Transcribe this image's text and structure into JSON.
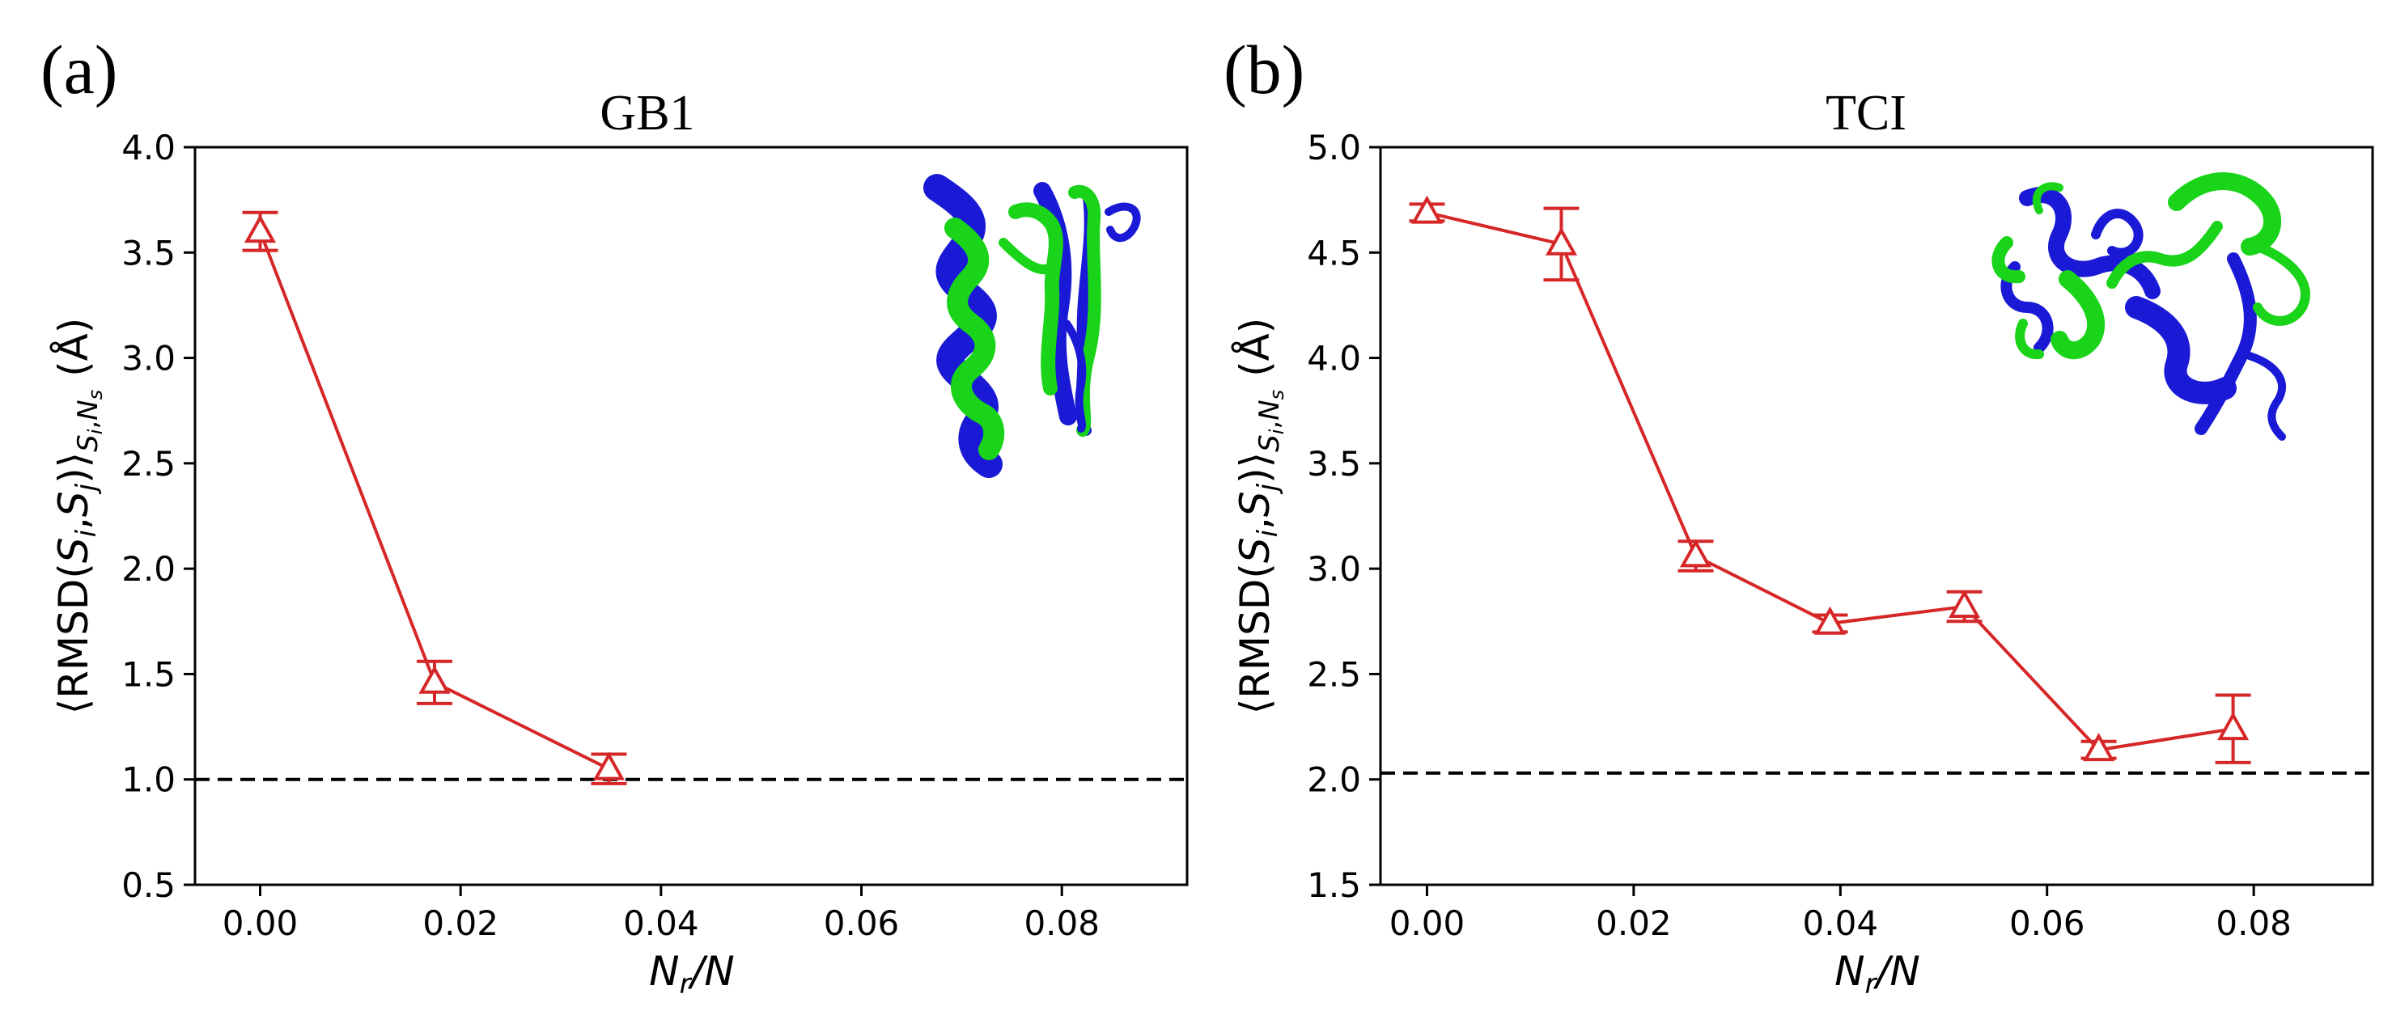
{
  "panels": [
    {
      "panel_label": "(a)",
      "chart_data": {
        "type": "line",
        "title": "GB1",
        "xlabel": "N_r/N",
        "ylabel": "⟨RMSD(S_i,S_j)⟩_{S_i,N_s} (Å)",
        "xlim": [
          -0.0065,
          0.0925
        ],
        "ylim": [
          0.5,
          4.0
        ],
        "xticks": [
          0.0,
          0.02,
          0.04,
          0.06,
          0.08
        ],
        "xtick_labels": [
          "0.00",
          "0.02",
          "0.04",
          "0.06",
          "0.08"
        ],
        "yticks": [
          0.5,
          1.0,
          1.5,
          2.0,
          2.5,
          3.0,
          3.5,
          4.0
        ],
        "ytick_labels": [
          "0.5",
          "1.0",
          "1.5",
          "2.0",
          "2.5",
          "3.0",
          "3.5",
          "4.0"
        ],
        "series": [
          {
            "name": "RMSD",
            "color": "#d62728",
            "marker": "open-triangle",
            "x": [
              0.0,
              0.0174,
              0.0348
            ],
            "y": [
              3.6,
              1.46,
              1.05
            ],
            "yerr": [
              0.09,
              0.1,
              0.07
            ]
          }
        ],
        "reference_line": {
          "y": 1.0,
          "style": "dashed",
          "color": "#000000"
        }
      }
    },
    {
      "panel_label": "(b)",
      "chart_data": {
        "type": "line",
        "title": "TCI",
        "xlabel": "N_r/N",
        "ylabel": "⟨RMSD(S_i,S_j)⟩_{S_i,N_s} (Å)",
        "xlim": [
          -0.0045,
          0.0915
        ],
        "ylim": [
          1.5,
          5.0
        ],
        "xticks": [
          0.0,
          0.02,
          0.04,
          0.06,
          0.08
        ],
        "xtick_labels": [
          "0.00",
          "0.02",
          "0.04",
          "0.06",
          "0.08"
        ],
        "yticks": [
          1.5,
          2.0,
          2.5,
          3.0,
          3.5,
          4.0,
          4.5,
          5.0
        ],
        "ytick_labels": [
          "1.5",
          "2.0",
          "2.5",
          "3.0",
          "3.5",
          "4.0",
          "4.5",
          "5.0"
        ],
        "series": [
          {
            "name": "RMSD",
            "color": "#d62728",
            "marker": "open-triangle",
            "x": [
              0.0,
              0.013,
              0.026,
              0.039,
              0.052,
              0.065,
              0.078
            ],
            "y": [
              4.69,
              4.54,
              3.06,
              2.74,
              2.82,
              2.14,
              2.24
            ],
            "yerr": [
              0.04,
              0.17,
              0.07,
              0.04,
              0.07,
              0.04,
              0.16
            ]
          }
        ],
        "reference_line": {
          "y": 2.03,
          "style": "dashed",
          "color": "#000000"
        }
      }
    }
  ],
  "colors": {
    "series": "#d62728",
    "axis": "#000000",
    "protein_blue": "#1a1ad6",
    "protein_green": "#19d419"
  }
}
